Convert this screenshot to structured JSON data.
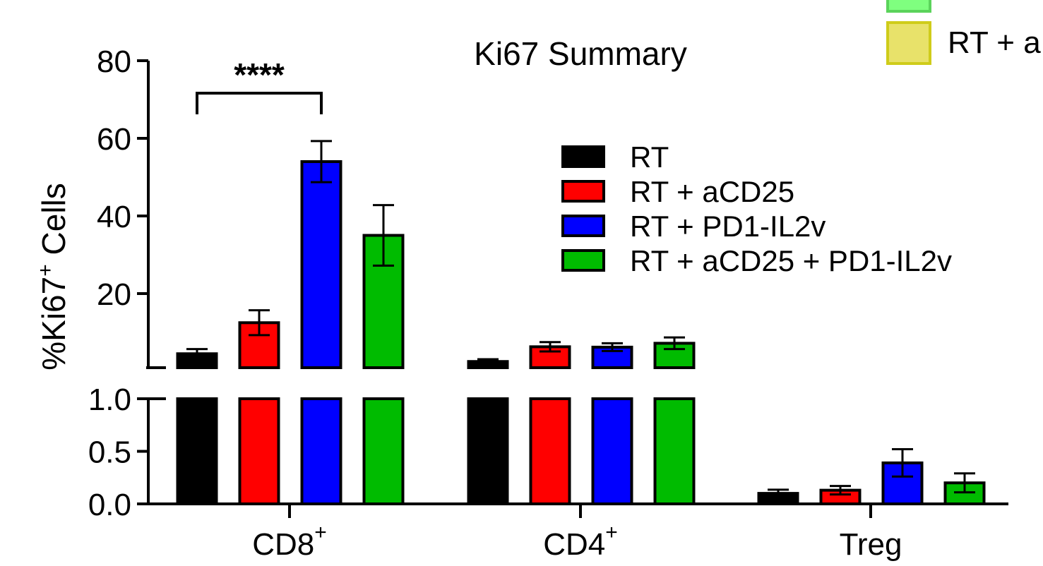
{
  "chart_data": {
    "type": "bar",
    "title": "Ki67 Summary",
    "ylabel": "%Ki67",
    "ylabel_sup": "+",
    "ylabel_suffix": " Cells",
    "xlabel": "",
    "axis_break": true,
    "y_lower": {
      "range": [
        0,
        1.0
      ],
      "ticks": [
        "0.0",
        "0.5",
        "1.0"
      ]
    },
    "y_upper": {
      "range": [
        1.0,
        80
      ],
      "ticks": [
        "20",
        "40",
        "60",
        "80"
      ]
    },
    "groups": [
      {
        "label": "CD8",
        "sup": "+"
      },
      {
        "label": "CD4",
        "sup": "+"
      },
      {
        "label": "Treg",
        "sup": ""
      }
    ],
    "series": [
      {
        "name": "RT",
        "color": "#000000",
        "values": [
          4.5,
          2.5,
          0.1
        ],
        "errors": [
          1.2,
          0.6,
          0.035
        ]
      },
      {
        "name": "RT + aCD25",
        "color": "#ff0000",
        "values": [
          12.5,
          6.3,
          0.13
        ],
        "errors": [
          3.2,
          1.2,
          0.04
        ]
      },
      {
        "name": "RT + PD1-IL2v",
        "color": "#0000ff",
        "values": [
          54,
          6.2,
          0.39
        ],
        "errors": [
          5.3,
          1.0,
          0.13
        ]
      },
      {
        "name": "RT + aCD25 + PD1-IL2v",
        "color": "#00bb00",
        "values": [
          35,
          7.2,
          0.2
        ],
        "errors": [
          7.8,
          1.5,
          0.09
        ]
      }
    ],
    "significance": {
      "label": "****",
      "group": 0,
      "from_series": 0,
      "to_series": 2
    },
    "legend_position": "upper-right",
    "clipped_legend": {
      "entries": [
        {
          "label": "",
          "color": "#7fff7f",
          "border": "#5bd35b"
        },
        {
          "label": "RT + a",
          "color": "#e8e26a",
          "border": "#cfcc1a"
        }
      ]
    }
  }
}
